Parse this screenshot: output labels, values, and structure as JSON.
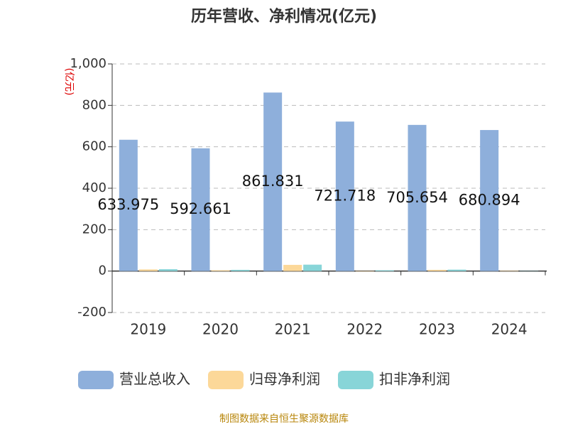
{
  "chart_data": {
    "type": "bar",
    "title": "历年营收、净利情况(亿元)",
    "y_label": "(亿元)",
    "categories": [
      "2019",
      "2020",
      "2021",
      "2022",
      "2023",
      "2024"
    ],
    "series": [
      {
        "name": "营业总收入",
        "color": "#8eafdb",
        "values": [
          633.975,
          592.661,
          861.831,
          721.718,
          705.654,
          680.894
        ]
      },
      {
        "name": "归母净利润",
        "color": "#fcd899",
        "values": [
          8,
          4,
          30,
          -2,
          6,
          2
        ]
      },
      {
        "name": "扣非净利润",
        "color": "#88d5d8",
        "values": [
          9,
          6,
          31,
          4,
          7,
          1
        ]
      }
    ],
    "ylim": [
      -200,
      1000
    ],
    "yticks": [
      -200,
      0,
      200,
      400,
      600,
      800,
      {
        "value": 1000,
        "label": "1,000"
      }
    ],
    "grid": true,
    "source": "制图数据来自恒生聚源数据库"
  }
}
